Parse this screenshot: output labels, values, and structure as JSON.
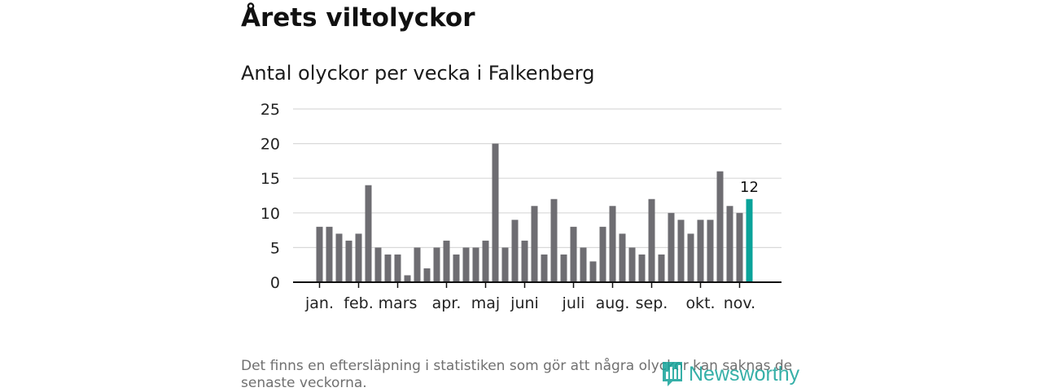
{
  "title": "Årets viltolyckor",
  "subtitle": "Antal olyckor per vecka i Falkenberg",
  "footnote": "Det finns en eftersläpning i statistiken som gör att några olyckor kan saknas de senaste veckorna.",
  "logo": {
    "text": "Newsworthy",
    "icon": "bar-chart-logo-icon"
  },
  "colors": {
    "bar": "#6e6d72",
    "highlight": "#0aa39a",
    "grid": "#d9d9d9",
    "axis": "#111111",
    "logo": "#14a39a"
  },
  "chart_data": {
    "type": "bar",
    "title": "Antal olyckor per vecka i Falkenberg",
    "xlabel": "",
    "ylabel": "",
    "ylim": [
      0,
      25
    ],
    "yticks": [
      0,
      5,
      10,
      15,
      20,
      25
    ],
    "x": [
      1,
      2,
      3,
      4,
      5,
      6,
      7,
      8,
      9,
      10,
      11,
      12,
      13,
      14,
      15,
      16,
      17,
      18,
      19,
      20,
      21,
      22,
      23,
      24,
      25,
      26,
      27,
      28,
      29,
      30,
      31,
      32,
      33,
      34,
      35,
      36,
      37,
      38,
      39,
      40,
      41,
      42,
      43,
      44,
      45
    ],
    "values": [
      8,
      8,
      7,
      6,
      7,
      14,
      5,
      4,
      4,
      1,
      5,
      2,
      5,
      6,
      4,
      5,
      5,
      6,
      20,
      5,
      9,
      6,
      11,
      4,
      12,
      4,
      8,
      5,
      3,
      8,
      11,
      7,
      5,
      4,
      12,
      4,
      10,
      9,
      7,
      9,
      9,
      16,
      11,
      10,
      12
    ],
    "month_labels": [
      {
        "label": "jan.",
        "week": 1
      },
      {
        "label": "feb.",
        "week": 5
      },
      {
        "label": "mars",
        "week": 9
      },
      {
        "label": "apr.",
        "week": 14
      },
      {
        "label": "maj",
        "week": 18
      },
      {
        "label": "juni",
        "week": 22
      },
      {
        "label": "juli",
        "week": 27
      },
      {
        "label": "aug.",
        "week": 31
      },
      {
        "label": "sep.",
        "week": 35
      },
      {
        "label": "okt.",
        "week": 40
      },
      {
        "label": "nov.",
        "week": 44
      }
    ],
    "highlight_index": 44,
    "highlight_label": "12",
    "grid": true
  }
}
